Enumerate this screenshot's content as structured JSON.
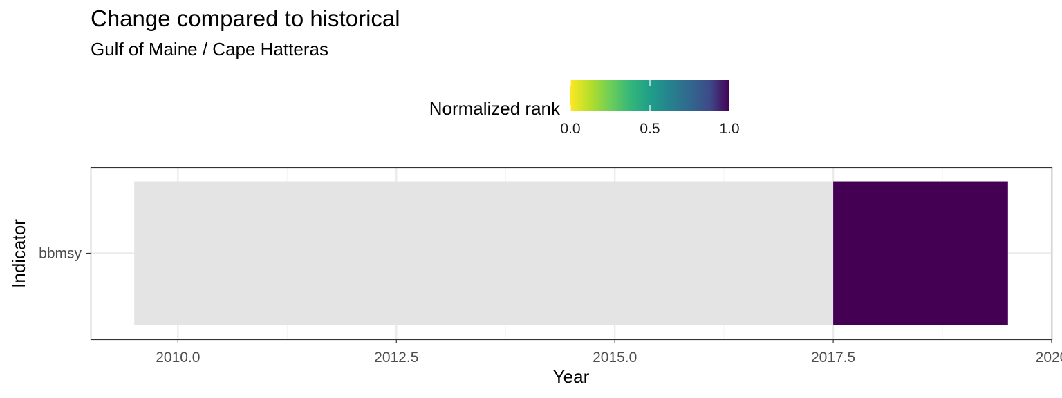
{
  "chart_data": {
    "type": "heatmap",
    "title": "Change compared to historical",
    "subtitle": "Gulf of Maine / Cape Hatteras",
    "xlabel": "Year",
    "ylabel": "Indicator",
    "xlim": [
      2009,
      2020
    ],
    "x_ticks": [
      2010.0,
      2012.5,
      2015.0,
      2017.5,
      2020
    ],
    "x_tick_labels": [
      "2010.0",
      "2012.5",
      "2015.0",
      "2017.5",
      "2020"
    ],
    "y_categories": [
      "bbmsy"
    ],
    "grid": true,
    "legend": {
      "title": "Normalized rank",
      "placement": "top",
      "scale": "viridis-reversed",
      "ticks": [
        0.0,
        0.5,
        1.0
      ],
      "tick_labels": [
        "0.0",
        "0.5",
        "1.0"
      ],
      "colors": [
        "#FDE725",
        "#21908C",
        "#440154"
      ]
    },
    "series": [
      {
        "indicator": "bbmsy",
        "x_start": 2009.5,
        "x_end": 2017.5,
        "value": null,
        "fill": "#E4E4E4"
      },
      {
        "indicator": "bbmsy",
        "x_start": 2017.5,
        "x_end": 2019.5,
        "value": 1.0,
        "fill": "#440154"
      }
    ]
  },
  "colors": {
    "panel_border": "#333333",
    "grid_major": "#EBEBEB",
    "grid_minor": "#F5F5F5"
  }
}
